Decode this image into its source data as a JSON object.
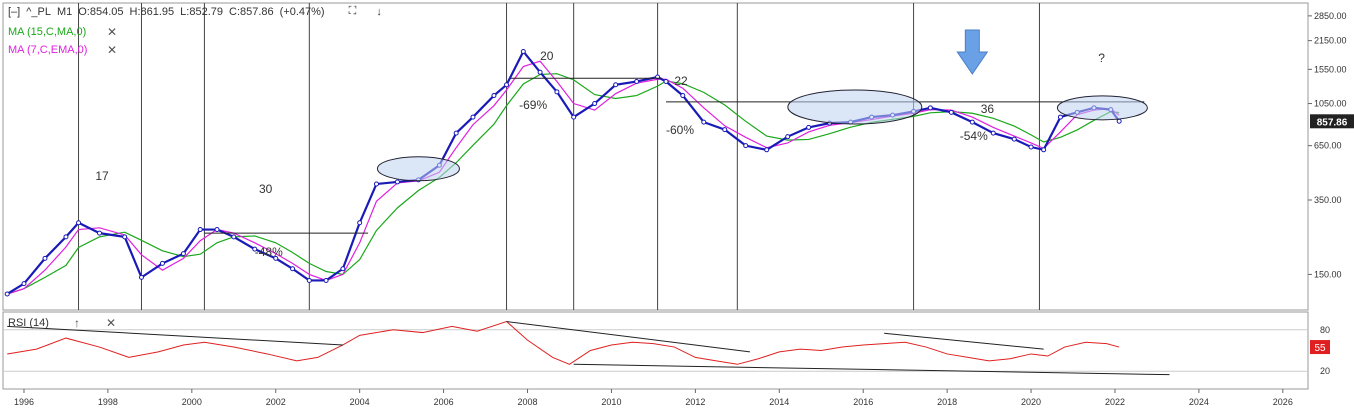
{
  "header": {
    "collapse": "[–]",
    "symbol": "^_PL",
    "timeframe": "M1",
    "open": "O:854.05",
    "high": "H:861.95",
    "low": "L:852.79",
    "close": "C:857.86",
    "change": "(+0.47%)"
  },
  "indicators": {
    "ma1": {
      "label": "MA (15,C,MA,0)",
      "color": "#1aa81a"
    },
    "ma2": {
      "label": "MA (7,C,EMA,0)",
      "color": "#e020e0"
    },
    "rsi": {
      "label": "RSI (14)"
    }
  },
  "price_badge": "857.86",
  "rsi_badge": "55",
  "icons": {
    "expand": "expand-icon",
    "download": "down-arrow-icon",
    "close": "close-icon",
    "up": "up-arrow-icon"
  },
  "chart_data": [
    {
      "type": "line",
      "scale": "log",
      "ylim": [
        100,
        3300
      ],
      "xlim": [
        1995.5,
        2026.6
      ],
      "x_ticks": [
        "1996",
        "1998",
        "2000",
        "2002",
        "2004",
        "2006",
        "2008",
        "2010",
        "2012",
        "2014",
        "2016",
        "2018",
        "2020",
        "2022",
        "2024",
        "2026"
      ],
      "y_ticks": [
        "2850.00",
        "2150.00",
        "1550.00",
        "1050.00",
        "650.00",
        "350.00",
        "150.00"
      ],
      "series": [
        {
          "x": [
            1995.6,
            1996.0,
            1996.5,
            1997.0,
            1997.3,
            1997.8,
            1998.4,
            1998.8,
            1999.3,
            1999.8,
            2000.2,
            2000.6,
            2001.0,
            2001.5,
            2002.0,
            2002.4,
            2002.8,
            2003.2,
            2003.6,
            2004.0,
            2004.4,
            2004.9,
            2005.4,
            2005.9,
            2006.3,
            2006.7,
            2007.2,
            2007.5,
            2007.9,
            2008.3,
            2008.7,
            2009.1,
            2009.6,
            2010.1,
            2010.6,
            2011.1,
            2011.3,
            2011.7,
            2012.2,
            2012.7,
            2013.2,
            2013.7,
            2014.2,
            2014.7,
            2015.2,
            2015.7,
            2016.2,
            2016.7,
            2017.2,
            2017.6,
            2018.1,
            2018.6,
            2019.1,
            2019.6,
            2020.0,
            2020.3,
            2020.7,
            2021.1,
            2021.5,
            2021.9,
            2022.1
          ],
          "values": [
            120,
            135,
            180,
            230,
            270,
            240,
            230,
            145,
            170,
            190,
            250,
            250,
            230,
            200,
            180,
            160,
            140,
            140,
            160,
            270,
            420,
            430,
            440,
            520,
            750,
            900,
            1150,
            1300,
            1900,
            1500,
            1200,
            900,
            1050,
            1300,
            1350,
            1420,
            1350,
            1150,
            850,
            780,
            650,
            620,
            720,
            800,
            840,
            850,
            900,
            920,
            960,
            1000,
            950,
            850,
            750,
            700,
            640,
            620,
            900,
            950,
            1000,
            980,
            858
          ]
        }
      ],
      "annotations": [
        "17",
        "30",
        "-48%",
        "20",
        "-69%",
        "22",
        "-60%",
        "36",
        "-54%",
        "?"
      ]
    },
    {
      "type": "line",
      "ylim": [
        0,
        100
      ],
      "y_ticks": [
        "80",
        "20"
      ],
      "series": [
        {
          "x": [
            1995.6,
            1996.3,
            1997.0,
            1997.8,
            1998.5,
            1999.2,
            1999.8,
            2000.3,
            2001.0,
            2001.8,
            2002.5,
            2003.0,
            2003.6,
            2004.0,
            2004.8,
            2005.5,
            2006.2,
            2006.8,
            2007.5,
            2008.0,
            2008.6,
            2009.0,
            2009.5,
            2010.0,
            2010.5,
            2011.0,
            2011.5,
            2012.0,
            2012.5,
            2013.0,
            2013.5,
            2014.0,
            2014.5,
            2015.0,
            2015.5,
            2016.0,
            2016.5,
            2017.0,
            2017.5,
            2018.0,
            2018.5,
            2019.0,
            2019.5,
            2020.0,
            2020.4,
            2020.8,
            2021.3,
            2021.8,
            2022.1
          ],
          "values": [
            45,
            52,
            68,
            55,
            40,
            48,
            58,
            62,
            55,
            45,
            35,
            40,
            58,
            72,
            80,
            76,
            85,
            78,
            92,
            65,
            40,
            30,
            50,
            58,
            62,
            60,
            55,
            40,
            35,
            30,
            38,
            48,
            52,
            50,
            55,
            58,
            60,
            62,
            55,
            45,
            40,
            35,
            38,
            45,
            42,
            55,
            62,
            60,
            55
          ]
        }
      ]
    }
  ]
}
